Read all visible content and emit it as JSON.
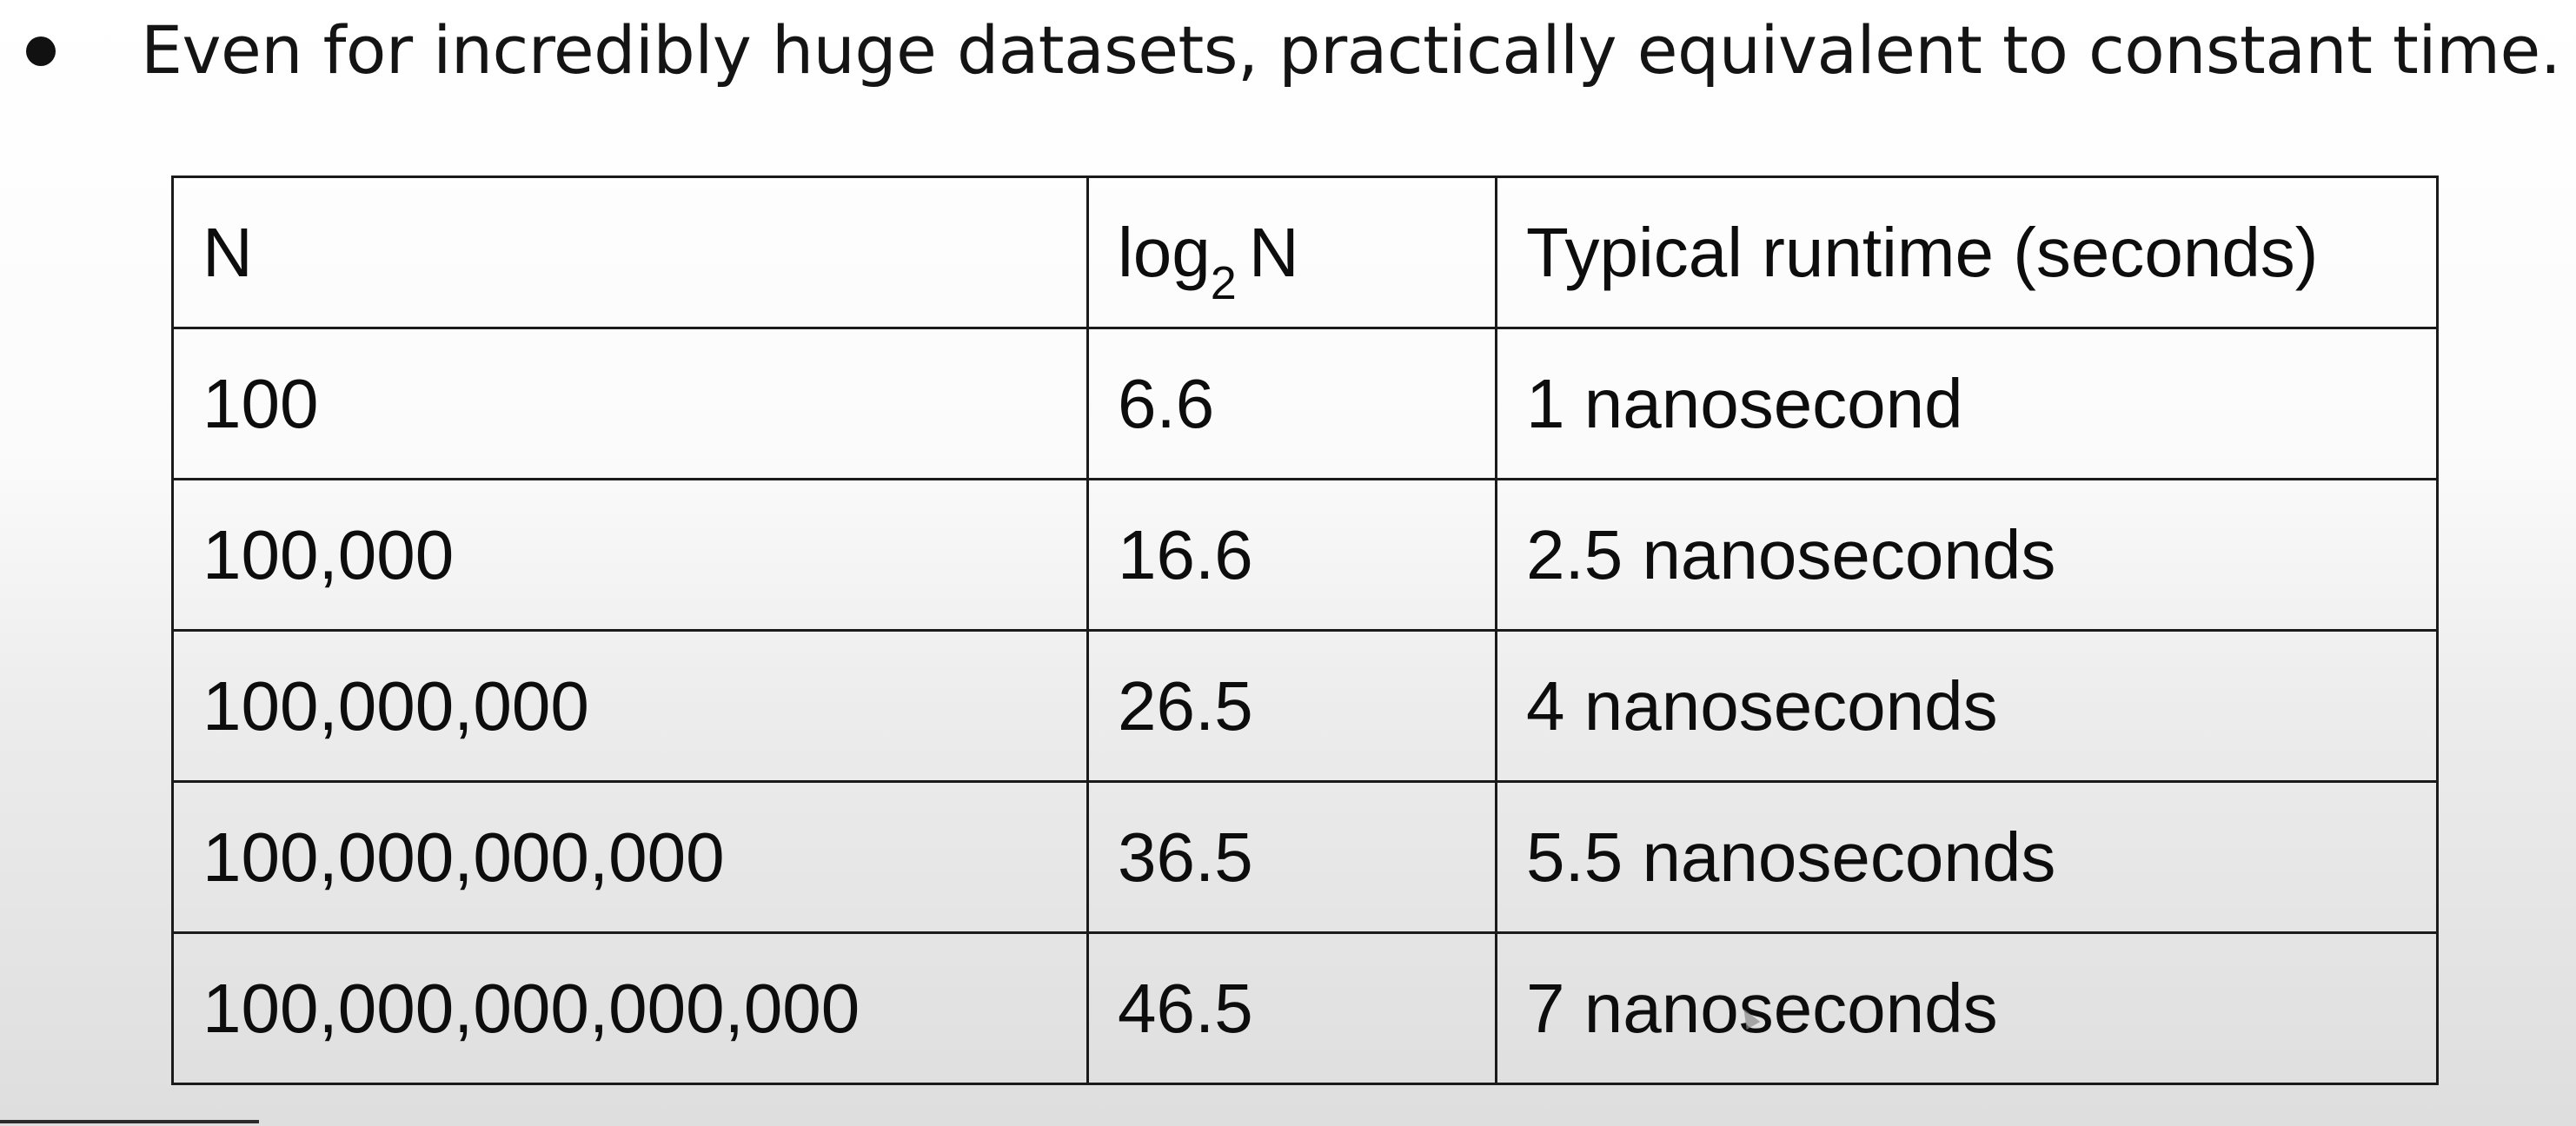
{
  "bullet": {
    "text": "Even for incredibly huge datasets, practically equivalent to constant time."
  },
  "table": {
    "headers": {
      "n": "N",
      "log_base": "log",
      "log_subscript": "2",
      "log_var": "N",
      "runtime": "Typical runtime (seconds)"
    },
    "rows": [
      {
        "n": "100",
        "log": "6.6",
        "runtime": "1 nanosecond"
      },
      {
        "n": "100,000",
        "log": "16.6",
        "runtime": "2.5 nanoseconds"
      },
      {
        "n": "100,000,000",
        "log": "26.5",
        "runtime": "4 nanoseconds"
      },
      {
        "n": "100,000,000,000",
        "log": "36.5",
        "runtime": "5.5 nanoseconds"
      },
      {
        "n": "100,000,000,000,000",
        "log": "46.5",
        "runtime": "7 nanoseconds"
      }
    ]
  }
}
